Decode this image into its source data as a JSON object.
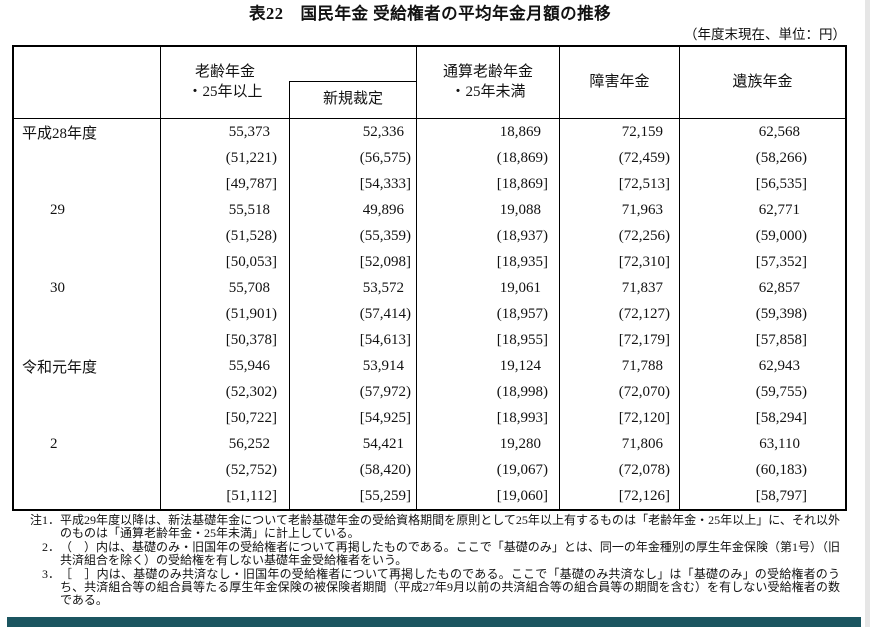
{
  "page": {
    "title": "表22　国民年金 受給権者の平均年金月額の推移",
    "unit_note": "（年度末現在、単位：円）"
  },
  "table": {
    "header": {
      "oldage_line1": "老齢年金",
      "oldage_line2": "・25年以上",
      "new_award": "新規裁定",
      "lump_line1": "通算老齢年金",
      "lump_line2": "・25年未満",
      "disability": "障害年金",
      "survivor": "遺族年金"
    },
    "row_groups": [
      {
        "label": "平成28年度",
        "lines": [
          {
            "kind": "plain",
            "values": [
              "55,373",
              "52,336",
              "18,869",
              "72,159",
              "62,568"
            ]
          },
          {
            "kind": "paren",
            "values": [
              "(51,221)",
              "(56,575)",
              "(18,869)",
              "(72,459)",
              "(58,266)"
            ]
          },
          {
            "kind": "bracket",
            "values": [
              "[49,787]",
              "[54,333]",
              "[18,869]",
              "[72,513]",
              "[56,535]"
            ]
          }
        ]
      },
      {
        "label": "29",
        "lines": [
          {
            "kind": "plain",
            "values": [
              "55,518",
              "49,896",
              "19,088",
              "71,963",
              "62,771"
            ]
          },
          {
            "kind": "paren",
            "values": [
              "(51,528)",
              "(55,359)",
              "(18,937)",
              "(72,256)",
              "(59,000)"
            ]
          },
          {
            "kind": "bracket",
            "values": [
              "[50,053]",
              "[52,098]",
              "[18,935]",
              "[72,310]",
              "[57,352]"
            ]
          }
        ]
      },
      {
        "label": "30",
        "lines": [
          {
            "kind": "plain",
            "values": [
              "55,708",
              "53,572",
              "19,061",
              "71,837",
              "62,857"
            ]
          },
          {
            "kind": "paren",
            "values": [
              "(51,901)",
              "(57,414)",
              "(18,957)",
              "(72,127)",
              "(59,398)"
            ]
          },
          {
            "kind": "bracket",
            "values": [
              "[50,378]",
              "[54,613]",
              "[18,955]",
              "[72,179]",
              "[57,858]"
            ]
          }
        ]
      },
      {
        "label": "令和元年度",
        "lines": [
          {
            "kind": "plain",
            "values": [
              "55,946",
              "53,914",
              "19,124",
              "71,788",
              "62,943"
            ]
          },
          {
            "kind": "paren",
            "values": [
              "(52,302)",
              "(57,972)",
              "(18,998)",
              "(72,070)",
              "(59,755)"
            ]
          },
          {
            "kind": "bracket",
            "values": [
              "[50,722]",
              "[54,925]",
              "[18,993]",
              "[72,120]",
              "[58,294]"
            ]
          }
        ]
      },
      {
        "label": "2",
        "lines": [
          {
            "kind": "plain",
            "values": [
              "56,252",
              "54,421",
              "19,280",
              "71,806",
              "63,110"
            ]
          },
          {
            "kind": "paren",
            "values": [
              "(52,752)",
              "(58,420)",
              "(19,067)",
              "(72,078)",
              "(60,183)"
            ]
          },
          {
            "kind": "bracket",
            "values": [
              "[51,112]",
              "[55,259]",
              "[19,060]",
              "[72,126]",
              "[58,797]"
            ]
          }
        ]
      }
    ]
  },
  "notes": [
    {
      "label": "注1．",
      "text": "平成29年度以降は、新法基礎年金について老齢基礎年金の受給資格期間を原則として25年以上有するものは「老齢年金・25年以上」に、それ以外のものは「通算老齢年金・25年未満」に計上している。"
    },
    {
      "label": "2．",
      "text": "（　）内は、基礎のみ・旧国年の受給権者について再掲したものである。ここで「基礎のみ」とは、同一の年金種別の厚生年金保険（第1号）（旧共済組合を除く）の受給権を有しない基礎年金受給権者をいう。"
    },
    {
      "label": "3．",
      "text": "［　］内は、基礎のみ共済なし・旧国年の受給権者について再掲したものである。ここで「基礎のみ共済なし」は「基礎のみ」の受給権者のうち、共済組合等の組合員等たる厚生年金保険の被保険者期間（平成27年9月以前の共済組合等の組合員等の期間を含む）を有しない受給権者の数である。"
    }
  ],
  "colors": {
    "footer_bar": "#1b5560",
    "page_edge": "#e6e6e6"
  }
}
